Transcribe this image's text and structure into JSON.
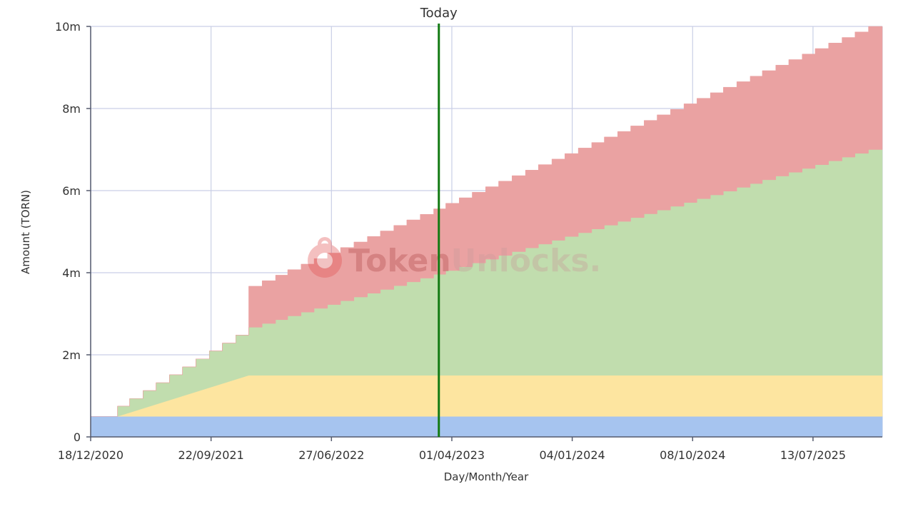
{
  "chart_data": {
    "type": "area",
    "stacked": true,
    "xlabel": "Day/Month/Year",
    "ylabel": "Amount (TORN)",
    "ylim": [
      0,
      10000000
    ],
    "yticks": [
      {
        "value": 0,
        "label": "0"
      },
      {
        "value": 2000000,
        "label": "2m"
      },
      {
        "value": 4000000,
        "label": "4m"
      },
      {
        "value": 6000000,
        "label": "6m"
      },
      {
        "value": 8000000,
        "label": "8m"
      },
      {
        "value": 10000000,
        "label": "10m"
      }
    ],
    "xlim": [
      "2020-12-18",
      "2025-12-20"
    ],
    "xticks": [
      {
        "date": "2020-12-18",
        "label": "18/12/2020"
      },
      {
        "date": "2021-09-22",
        "label": "22/09/2021"
      },
      {
        "date": "2022-06-27",
        "label": "27/06/2022"
      },
      {
        "date": "2023-04-01",
        "label": "01/04/2023"
      },
      {
        "date": "2024-01-04",
        "label": "04/01/2024"
      },
      {
        "date": "2024-10-08",
        "label": "08/10/2024"
      },
      {
        "date": "2025-07-13",
        "label": "13/07/2025"
      }
    ],
    "today": {
      "date": "2023-03-02",
      "label": "Today"
    },
    "series": [
      {
        "color": "#a6c4ef",
        "points": [
          [
            "2020-12-18",
            500000
          ],
          [
            "2025-12-20",
            500000
          ]
        ]
      },
      {
        "color": "#fde5a0",
        "points": [
          [
            "2020-12-18",
            0
          ],
          [
            "2021-02-18",
            0
          ],
          [
            "2021-12-18",
            1000000
          ],
          [
            "2025-12-20",
            1000000
          ]
        ]
      },
      {
        "color": "#c1ddae",
        "step": "monthly",
        "linear": [
          [
            "2021-02-18",
            250000
          ],
          [
            "2025-11-18",
            5500000
          ]
        ]
      },
      {
        "color": "#eaa2a2",
        "step": "monthly",
        "linear": [
          [
            "2021-12-18",
            1000000
          ],
          [
            "2025-11-18",
            3000000
          ]
        ]
      }
    ],
    "watermark": "TokenUnlocks."
  }
}
